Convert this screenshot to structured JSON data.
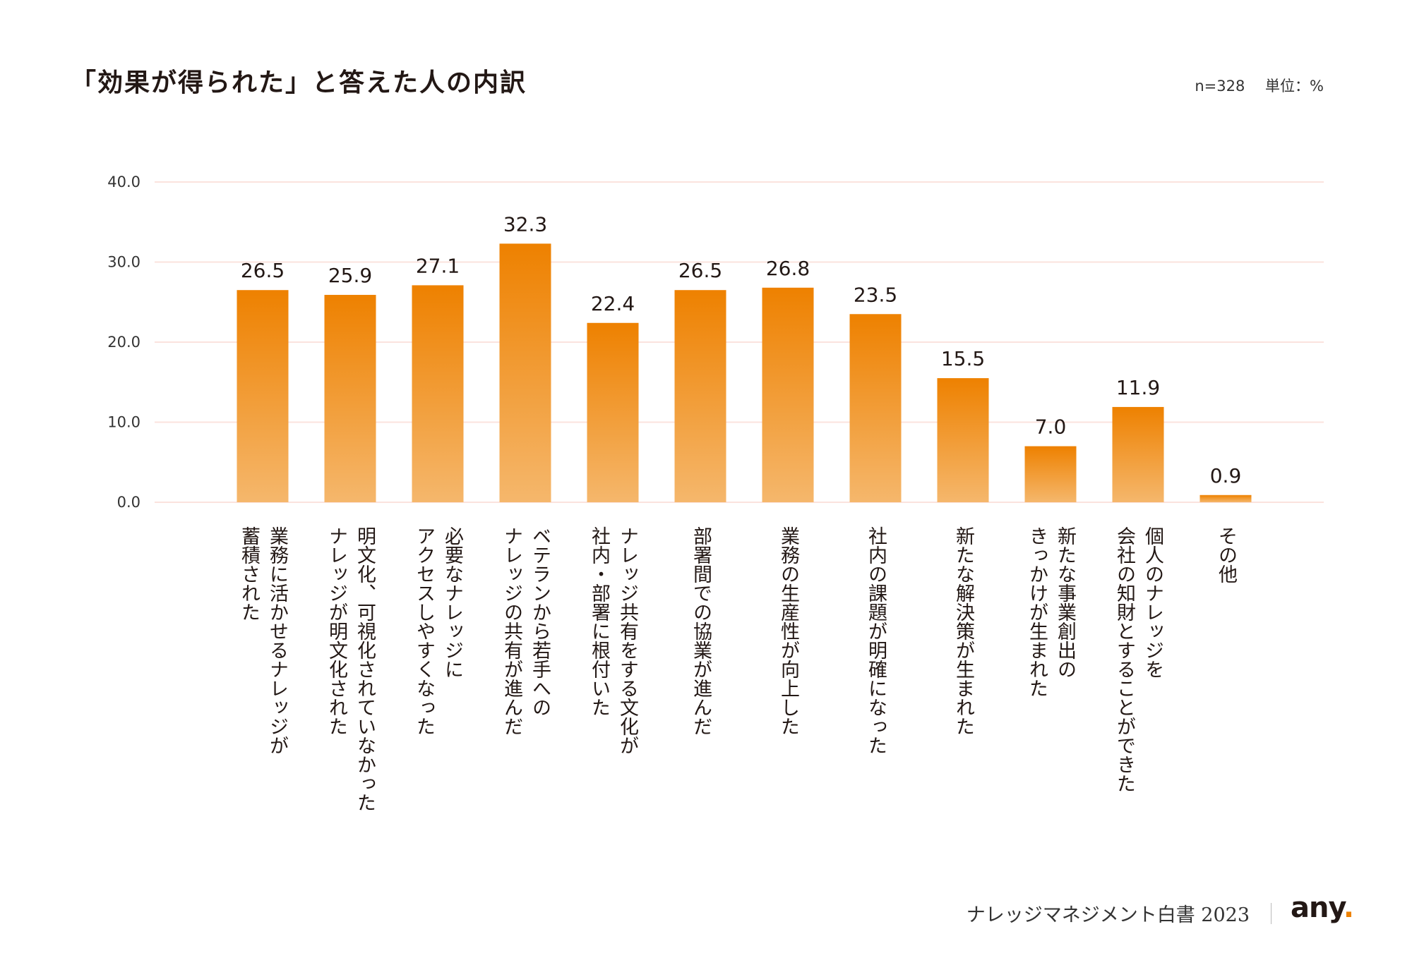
{
  "header": {
    "title": "「効果が得られた」と答えた人の内訳",
    "n": "n=328",
    "unit": "単位：%"
  },
  "footer": {
    "publication": "ナレッジマネジメント白書 2023",
    "logo_text": "any",
    "logo_dot": "."
  },
  "colors": {
    "bar_top": "#EE8100",
    "bar_bottom": "#F5B76C",
    "grid": "#FBE3DE",
    "logo_dot": "#EE8100"
  },
  "chart_data": {
    "type": "bar",
    "title": "「効果が得られた」と答えた人の内訳",
    "ylim": [
      0,
      40
    ],
    "yticks": [
      "0.0",
      "10.0",
      "20.0",
      "30.0",
      "40.0"
    ],
    "grid": true,
    "categories": [
      [
        "業務に活かせるナレッジが",
        "蓄積された"
      ],
      [
        "明文化、可視化されていなかった",
        "ナレッジが明文化された"
      ],
      [
        "必要なナレッジに",
        "アクセスしやすくなった"
      ],
      [
        "ベテランから若手への",
        "ナレッジの共有が進んだ"
      ],
      [
        "ナレッジ共有をする文化が",
        "社内・部署に根付いた"
      ],
      [
        "部署間での協業が進んだ"
      ],
      [
        "業務の生産性が向上した"
      ],
      [
        "社内の課題が明確になった"
      ],
      [
        "新たな解決策が生まれた"
      ],
      [
        "新たな事業創出の",
        "きっかけが生まれた"
      ],
      [
        "個人のナレッジを",
        "会社の知財とすることができた"
      ],
      [
        "その他"
      ]
    ],
    "values": [
      26.5,
      25.9,
      27.1,
      32.3,
      22.4,
      26.5,
      26.8,
      23.5,
      15.5,
      7.0,
      11.9,
      0.9
    ],
    "value_labels": [
      "26.5",
      "25.9",
      "27.1",
      "32.3",
      "22.4",
      "26.5",
      "26.8",
      "23.5",
      "15.5",
      "7.0",
      "11.9",
      "0.9"
    ]
  }
}
